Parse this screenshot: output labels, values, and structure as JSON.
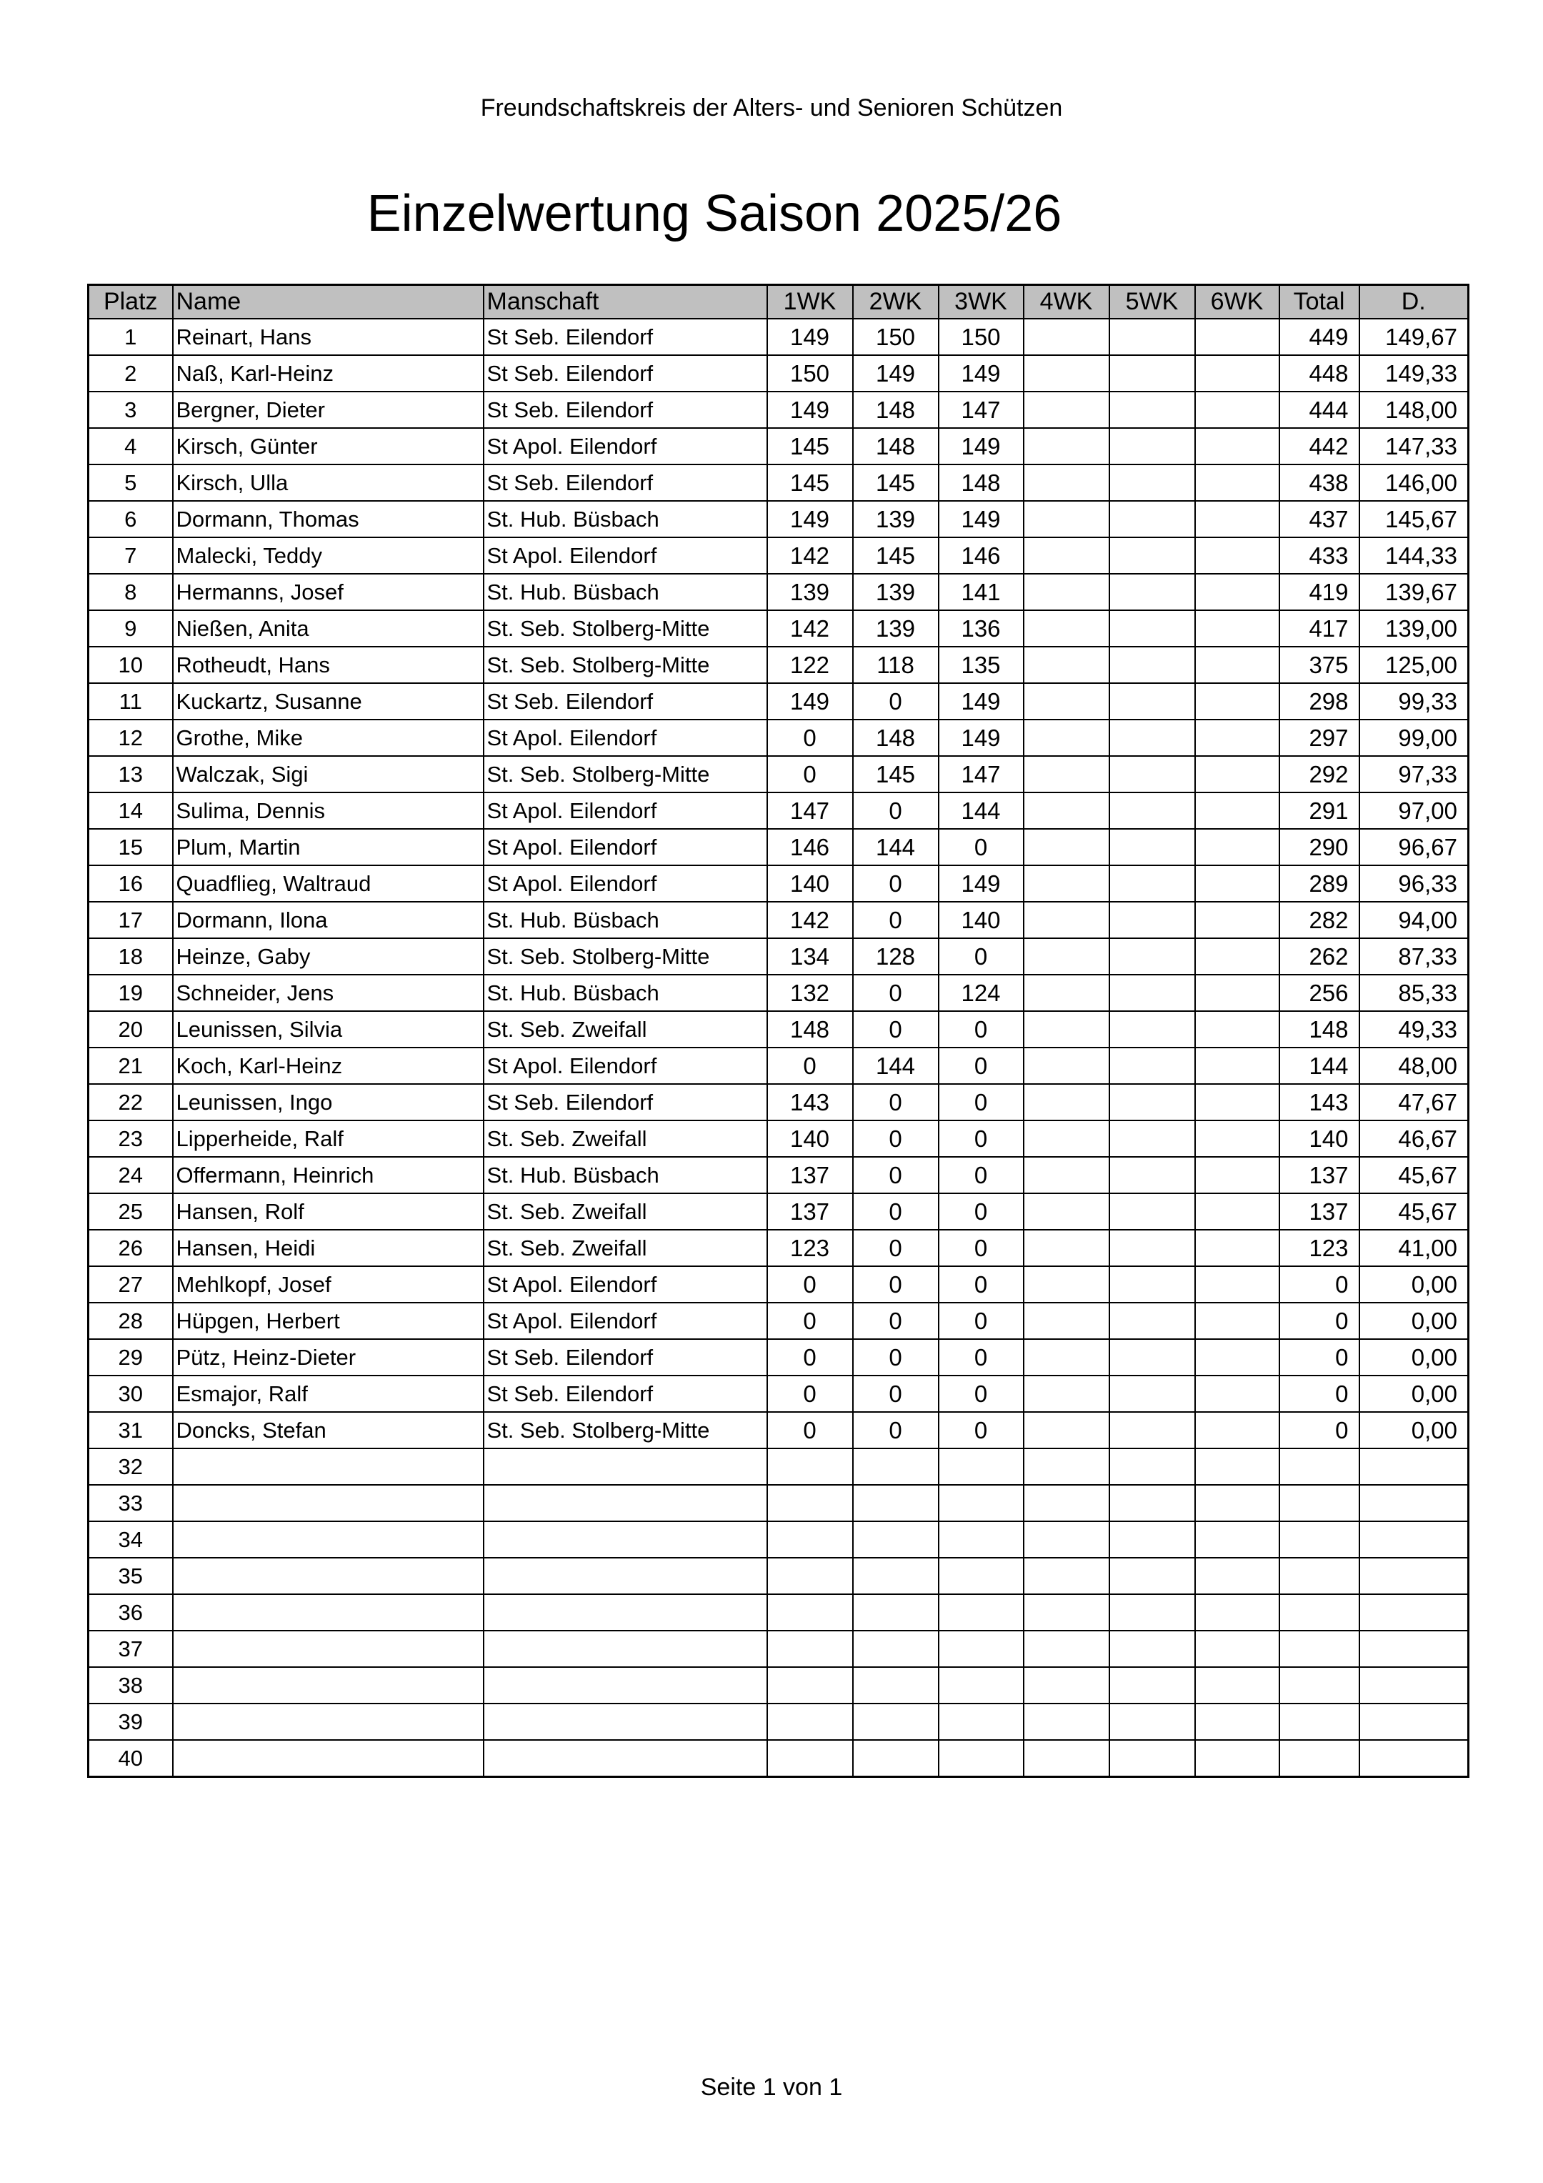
{
  "header": {
    "organization": "Freundschaftskreis der Alters- und Senioren Schützen",
    "title": "Einzelwertung Saison 2025/26"
  },
  "table": {
    "columns": [
      "Platz",
      "Name",
      "Manschaft",
      "1WK",
      "2WK",
      "3WK",
      "4WK",
      "5WK",
      "6WK",
      "Total",
      "D."
    ],
    "rows": [
      [
        "1",
        "Reinart, Hans",
        "St Seb. Eilendorf",
        "149",
        "150",
        "150",
        "",
        "",
        "",
        "449",
        "149,67"
      ],
      [
        "2",
        "Naß, Karl-Heinz",
        "St Seb. Eilendorf",
        "150",
        "149",
        "149",
        "",
        "",
        "",
        "448",
        "149,33"
      ],
      [
        "3",
        "Bergner, Dieter",
        "St Seb. Eilendorf",
        "149",
        "148",
        "147",
        "",
        "",
        "",
        "444",
        "148,00"
      ],
      [
        "4",
        "Kirsch, Günter",
        "St Apol. Eilendorf",
        "145",
        "148",
        "149",
        "",
        "",
        "",
        "442",
        "147,33"
      ],
      [
        "5",
        "Kirsch, Ulla",
        "St Seb. Eilendorf",
        "145",
        "145",
        "148",
        "",
        "",
        "",
        "438",
        "146,00"
      ],
      [
        "6",
        "Dormann, Thomas",
        "St. Hub. Büsbach",
        "149",
        "139",
        "149",
        "",
        "",
        "",
        "437",
        "145,67"
      ],
      [
        "7",
        "Malecki, Teddy",
        "St Apol. Eilendorf",
        "142",
        "145",
        "146",
        "",
        "",
        "",
        "433",
        "144,33"
      ],
      [
        "8",
        "Hermanns, Josef",
        "St. Hub. Büsbach",
        "139",
        "139",
        "141",
        "",
        "",
        "",
        "419",
        "139,67"
      ],
      [
        "9",
        "Nießen, Anita",
        "St. Seb. Stolberg-Mitte",
        "142",
        "139",
        "136",
        "",
        "",
        "",
        "417",
        "139,00"
      ],
      [
        "10",
        "Rotheudt, Hans",
        "St. Seb. Stolberg-Mitte",
        "122",
        "118",
        "135",
        "",
        "",
        "",
        "375",
        "125,00"
      ],
      [
        "11",
        "Kuckartz, Susanne",
        "St Seb. Eilendorf",
        "149",
        "0",
        "149",
        "",
        "",
        "",
        "298",
        "99,33"
      ],
      [
        "12",
        "Grothe, Mike",
        "St Apol. Eilendorf",
        "0",
        "148",
        "149",
        "",
        "",
        "",
        "297",
        "99,00"
      ],
      [
        "13",
        "Walczak, Sigi",
        "St. Seb. Stolberg-Mitte",
        "0",
        "145",
        "147",
        "",
        "",
        "",
        "292",
        "97,33"
      ],
      [
        "14",
        "Sulima, Dennis",
        "St Apol. Eilendorf",
        "147",
        "0",
        "144",
        "",
        "",
        "",
        "291",
        "97,00"
      ],
      [
        "15",
        "Plum, Martin",
        "St Apol. Eilendorf",
        "146",
        "144",
        "0",
        "",
        "",
        "",
        "290",
        "96,67"
      ],
      [
        "16",
        "Quadflieg, Waltraud",
        "St Apol. Eilendorf",
        "140",
        "0",
        "149",
        "",
        "",
        "",
        "289",
        "96,33"
      ],
      [
        "17",
        "Dormann, Ilona",
        "St. Hub. Büsbach",
        "142",
        "0",
        "140",
        "",
        "",
        "",
        "282",
        "94,00"
      ],
      [
        "18",
        "Heinze, Gaby",
        "St. Seb. Stolberg-Mitte",
        "134",
        "128",
        "0",
        "",
        "",
        "",
        "262",
        "87,33"
      ],
      [
        "19",
        "Schneider, Jens",
        "St. Hub. Büsbach",
        "132",
        "0",
        "124",
        "",
        "",
        "",
        "256",
        "85,33"
      ],
      [
        "20",
        "Leunissen, Silvia",
        "St. Seb. Zweifall",
        "148",
        "0",
        "0",
        "",
        "",
        "",
        "148",
        "49,33"
      ],
      [
        "21",
        "Koch, Karl-Heinz",
        "St Apol. Eilendorf",
        "0",
        "144",
        "0",
        "",
        "",
        "",
        "144",
        "48,00"
      ],
      [
        "22",
        "Leunissen, Ingo",
        "St Seb. Eilendorf",
        "143",
        "0",
        "0",
        "",
        "",
        "",
        "143",
        "47,67"
      ],
      [
        "23",
        "Lipperheide, Ralf",
        "St. Seb. Zweifall",
        "140",
        "0",
        "0",
        "",
        "",
        "",
        "140",
        "46,67"
      ],
      [
        "24",
        "Offermann, Heinrich",
        "St. Hub. Büsbach",
        "137",
        "0",
        "0",
        "",
        "",
        "",
        "137",
        "45,67"
      ],
      [
        "25",
        "Hansen, Rolf",
        "St. Seb. Zweifall",
        "137",
        "0",
        "0",
        "",
        "",
        "",
        "137",
        "45,67"
      ],
      [
        "26",
        "Hansen, Heidi",
        "St. Seb. Zweifall",
        "123",
        "0",
        "0",
        "",
        "",
        "",
        "123",
        "41,00"
      ],
      [
        "27",
        "Mehlkopf, Josef",
        "St Apol. Eilendorf",
        "0",
        "0",
        "0",
        "",
        "",
        "",
        "0",
        "0,00"
      ],
      [
        "28",
        "Hüpgen, Herbert",
        "St Apol. Eilendorf",
        "0",
        "0",
        "0",
        "",
        "",
        "",
        "0",
        "0,00"
      ],
      [
        "29",
        "Pütz, Heinz-Dieter",
        "St Seb. Eilendorf",
        "0",
        "0",
        "0",
        "",
        "",
        "",
        "0",
        "0,00"
      ],
      [
        "30",
        "Esmajor, Ralf",
        "St Seb. Eilendorf",
        "0",
        "0",
        "0",
        "",
        "",
        "",
        "0",
        "0,00"
      ],
      [
        "31",
        "Doncks, Stefan",
        "St. Seb. Stolberg-Mitte",
        "0",
        "0",
        "0",
        "",
        "",
        "",
        "0",
        "0,00"
      ],
      [
        "32",
        "",
        "",
        "",
        "",
        "",
        "",
        "",
        "",
        "",
        ""
      ],
      [
        "33",
        "",
        "",
        "",
        "",
        "",
        "",
        "",
        "",
        "",
        ""
      ],
      [
        "34",
        "",
        "",
        "",
        "",
        "",
        "",
        "",
        "",
        "",
        ""
      ],
      [
        "35",
        "",
        "",
        "",
        "",
        "",
        "",
        "",
        "",
        "",
        ""
      ],
      [
        "36",
        "",
        "",
        "",
        "",
        "",
        "",
        "",
        "",
        "",
        ""
      ],
      [
        "37",
        "",
        "",
        "",
        "",
        "",
        "",
        "",
        "",
        "",
        ""
      ],
      [
        "38",
        "",
        "",
        "",
        "",
        "",
        "",
        "",
        "",
        "",
        ""
      ],
      [
        "39",
        "",
        "",
        "",
        "",
        "",
        "",
        "",
        "",
        "",
        ""
      ],
      [
        "40",
        "",
        "",
        "",
        "",
        "",
        "",
        "",
        "",
        "",
        ""
      ]
    ]
  },
  "footer": {
    "page": "Seite 1 von 1"
  }
}
